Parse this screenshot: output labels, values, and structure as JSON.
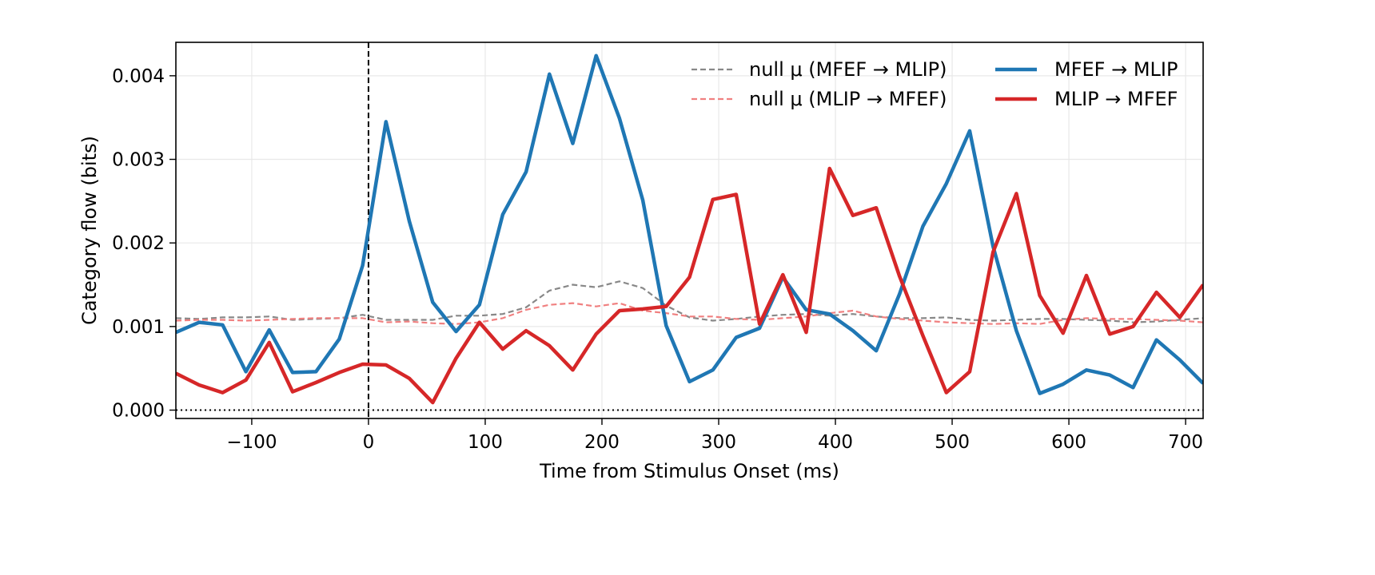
{
  "chart_data": {
    "type": "line",
    "xlabel": "Time from Stimulus Onset (ms)",
    "ylabel": "Category flow (bits)",
    "xlim": [
      -165,
      715
    ],
    "ylim": [
      -0.0001,
      0.0044
    ],
    "x_ticks": [
      -100,
      0,
      100,
      200,
      300,
      400,
      500,
      600,
      700
    ],
    "x_tick_labels": [
      "−100",
      "0",
      "100",
      "200",
      "300",
      "400",
      "500",
      "600",
      "700"
    ],
    "y_ticks": [
      0,
      0.001,
      0.002,
      0.003,
      0.004
    ],
    "y_tick_labels": [
      "0.000",
      "0.001",
      "0.002",
      "0.003",
      "0.004"
    ],
    "grid": true,
    "legend_position": "top-right",
    "reference_lines": [
      {
        "orientation": "vertical",
        "value": 0,
        "style": "dashed",
        "color": "#000000"
      },
      {
        "orientation": "horizontal",
        "value": 0,
        "style": "dotted",
        "color": "#000000"
      }
    ],
    "x": [
      -165,
      -145,
      -125,
      -105,
      -85,
      -65,
      -45,
      -25,
      -5,
      15,
      35,
      55,
      75,
      95,
      115,
      135,
      155,
      175,
      195,
      215,
      235,
      255,
      275,
      295,
      315,
      335,
      355,
      375,
      395,
      415,
      435,
      455,
      475,
      495,
      515,
      535,
      555,
      575,
      595,
      615,
      635,
      655,
      675,
      695,
      715
    ],
    "series": [
      {
        "name": "null μ (MFEF → MLIP)",
        "style": "dashed",
        "color": "#888888",
        "values": [
          0.0011,
          0.00109,
          0.00111,
          0.00111,
          0.00112,
          0.00108,
          0.00109,
          0.0011,
          0.00114,
          0.00108,
          0.00108,
          0.00108,
          0.00113,
          0.00113,
          0.00115,
          0.00123,
          0.00143,
          0.0015,
          0.00147,
          0.00154,
          0.00146,
          0.00125,
          0.00111,
          0.00107,
          0.00109,
          0.00112,
          0.00114,
          0.00115,
          0.00113,
          0.00115,
          0.00112,
          0.0011,
          0.0011,
          0.00111,
          0.00108,
          0.00107,
          0.00108,
          0.00109,
          0.00109,
          0.00108,
          0.00107,
          0.00105,
          0.00106,
          0.00108,
          0.0011
        ]
      },
      {
        "name": "null μ (MLIP → MFEF)",
        "style": "dashed",
        "color": "#f08080",
        "values": [
          0.00107,
          0.00108,
          0.00108,
          0.00107,
          0.00108,
          0.00109,
          0.0011,
          0.0011,
          0.0011,
          0.00105,
          0.00106,
          0.00104,
          0.00103,
          0.00105,
          0.0011,
          0.0012,
          0.00126,
          0.00128,
          0.00124,
          0.00128,
          0.00119,
          0.00116,
          0.00112,
          0.00112,
          0.00109,
          0.00108,
          0.0011,
          0.00112,
          0.00116,
          0.00119,
          0.00112,
          0.00109,
          0.00107,
          0.00105,
          0.00104,
          0.00103,
          0.00104,
          0.00103,
          0.00108,
          0.0011,
          0.00109,
          0.00109,
          0.00108,
          0.00107,
          0.00105
        ]
      },
      {
        "name": "MFEF → MLIP",
        "style": "solid",
        "color": "#1f77b4",
        "values": [
          0.00093,
          0.00105,
          0.00102,
          0.00046,
          0.00096,
          0.00045,
          0.00046,
          0.00085,
          0.00173,
          0.00345,
          0.00226,
          0.00129,
          0.00094,
          0.00126,
          0.00234,
          0.00285,
          0.00402,
          0.00319,
          0.00424,
          0.00349,
          0.00251,
          0.00101,
          0.00034,
          0.00048,
          0.00087,
          0.00098,
          0.00159,
          0.0012,
          0.00115,
          0.00095,
          0.00071,
          0.00139,
          0.0022,
          0.00271,
          0.00334,
          0.00196,
          0.00095,
          0.0002,
          0.00031,
          0.00048,
          0.00042,
          0.00027,
          0.00084,
          0.0006,
          0.00032
        ]
      },
      {
        "name": "MLIP → MFEF",
        "style": "solid",
        "color": "#d62728",
        "values": [
          0.00044,
          0.0003,
          0.00021,
          0.00036,
          0.00081,
          0.00022,
          0.00033,
          0.00045,
          0.00055,
          0.00054,
          0.00038,
          9e-05,
          0.00062,
          0.00105,
          0.00073,
          0.00095,
          0.00077,
          0.00048,
          0.00091,
          0.00119,
          0.00121,
          0.00124,
          0.00159,
          0.00252,
          0.00258,
          0.00103,
          0.00162,
          0.00093,
          0.00289,
          0.00233,
          0.00242,
          0.0016,
          0.00089,
          0.00021,
          0.00046,
          0.00189,
          0.00259,
          0.00137,
          0.00092,
          0.00161,
          0.00091,
          0.001,
          0.00141,
          0.00111,
          0.0015
        ]
      }
    ]
  }
}
